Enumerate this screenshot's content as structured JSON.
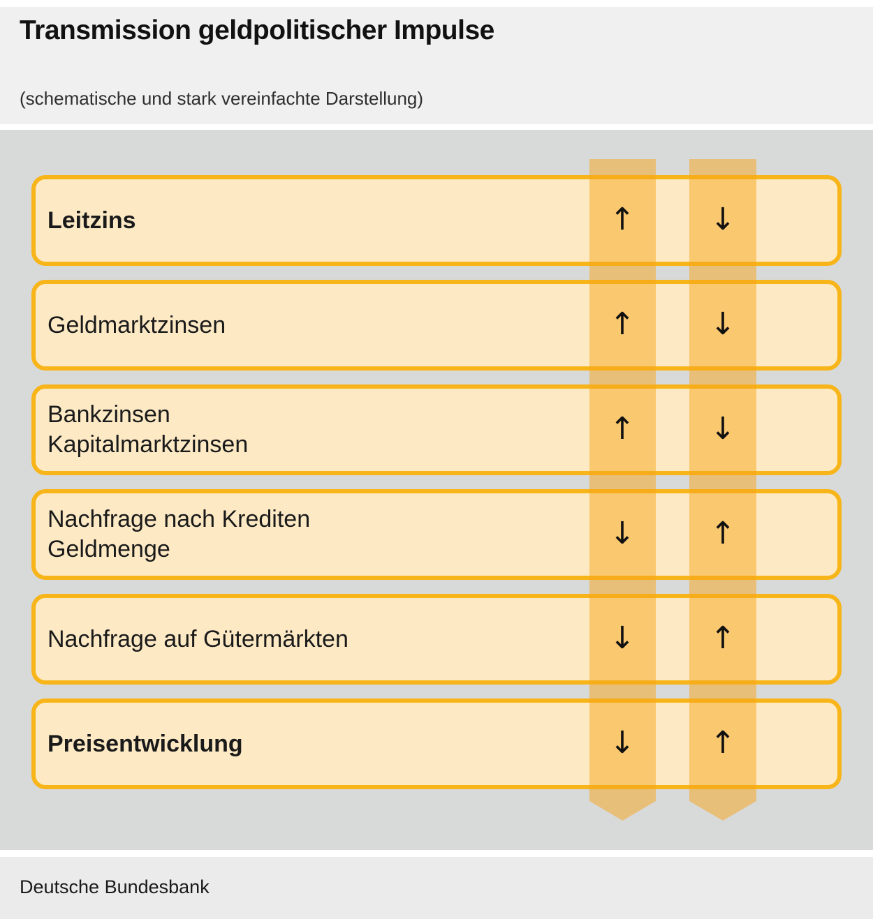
{
  "header": {
    "title": "Transmission geldpolitischer Impulse",
    "subtitle": "(schematische und stark vereinfachte Darstellung)"
  },
  "diagram": {
    "rows": [
      {
        "lines": [
          "Leitzins"
        ],
        "emphasis": true,
        "impulses": [
          "↑",
          "↓"
        ]
      },
      {
        "lines": [
          "Geldmarktzinsen"
        ],
        "emphasis": false,
        "impulses": [
          "↑",
          "↓"
        ]
      },
      {
        "lines": [
          "Bankzinsen",
          "Kapitalmarktzinsen"
        ],
        "emphasis": false,
        "impulses": [
          "↑",
          "↓"
        ]
      },
      {
        "lines": [
          "Nachfrage nach Krediten",
          "Geldmenge"
        ],
        "emphasis": false,
        "impulses": [
          "↓",
          "↑"
        ]
      },
      {
        "lines": [
          "Nachfrage auf Gütermärkten"
        ],
        "emphasis": false,
        "impulses": [
          "↓",
          "↑"
        ]
      },
      {
        "lines": [
          "Preisentwicklung"
        ],
        "emphasis": true,
        "impulses": [
          "↓",
          "↑"
        ]
      }
    ],
    "colors": {
      "box_fill": "#FDEAC5",
      "box_border": "#F7B51A",
      "band_overlay": "rgba(247,166,26,0.5)",
      "canvas_bg": "#D8D9D9",
      "header_bg": "#F0F0F1",
      "footer_bg": "#EBEBEB"
    }
  },
  "footer": {
    "source": "Deutsche Bundesbank"
  }
}
